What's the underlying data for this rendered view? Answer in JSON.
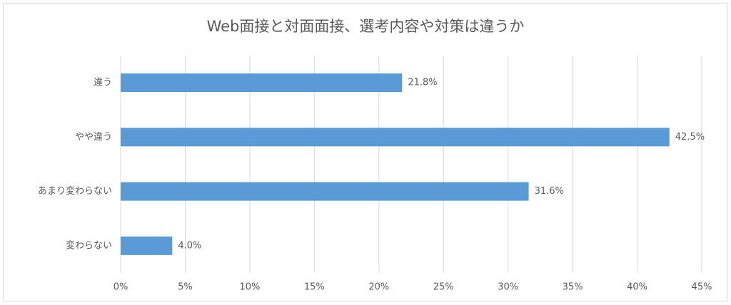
{
  "chart_data": {
    "type": "hbar",
    "title": "Web面接と対面面接、選考内容や対策は違うか",
    "categories": [
      "違う",
      "やや違う",
      "あまり変わらない",
      "変わらない"
    ],
    "values": [
      21.8,
      42.5,
      31.6,
      4.0
    ],
    "value_labels": [
      "21.8%",
      "42.5%",
      "31.6%",
      "4.0%"
    ],
    "color": "#5b9bd5",
    "xlim": [
      0,
      45
    ],
    "xticks": [
      {
        "value": 0,
        "label": "0%"
      },
      {
        "value": 5,
        "label": "5%"
      },
      {
        "value": 10,
        "label": "10%"
      },
      {
        "value": 15,
        "label": "15%"
      },
      {
        "value": 20,
        "label": "20%"
      },
      {
        "value": 25,
        "label": "25%"
      },
      {
        "value": 30,
        "label": "30%"
      },
      {
        "value": 35,
        "label": "35%"
      },
      {
        "value": 40,
        "label": "40%"
      },
      {
        "value": 45,
        "label": "45%"
      }
    ],
    "grid": true
  }
}
